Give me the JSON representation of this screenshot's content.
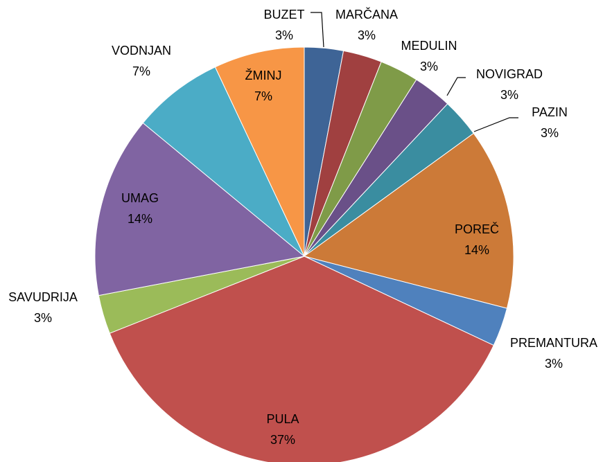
{
  "chart_data": {
    "type": "pie",
    "categories": [
      "BUZET",
      "MARČANA",
      "MEDULIN",
      "NOVIGRAD",
      "PAZIN",
      "POREČ",
      "PREMANTURA",
      "PULA",
      "SAVUDRIJA",
      "UMAG",
      "VODNJAN",
      "ŽMINJ"
    ],
    "values": [
      3,
      3,
      3,
      3,
      3,
      14,
      3,
      37,
      3,
      14,
      7,
      7
    ],
    "value_labels": [
      "3%",
      "3%",
      "3%",
      "3%",
      "3%",
      "14%",
      "3%",
      "37%",
      "3%",
      "14%",
      "7%",
      "7%"
    ],
    "colors": [
      "#3e6496",
      "#a04040",
      "#7f9b48",
      "#6a5088",
      "#3a8da0",
      "#cc7a38",
      "#4f81bd",
      "#c0504d",
      "#9bbb59",
      "#8064a2",
      "#4bacc6",
      "#f79646"
    ]
  }
}
